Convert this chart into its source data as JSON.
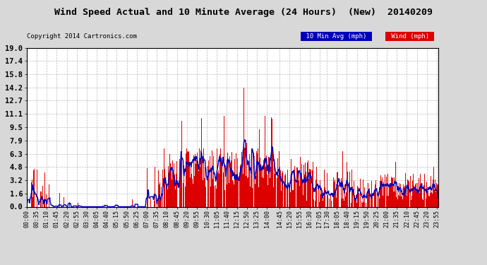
{
  "title": "Wind Speed Actual and 10 Minute Average (24 Hours)  (New)  20140209",
  "copyright": "Copyright 2014 Cartronics.com",
  "legend_labels": [
    "10 Min Avg (mph)",
    "Wind (mph)"
  ],
  "legend_colors": [
    "#0000bb",
    "#dd0000"
  ],
  "yticks": [
    0.0,
    1.6,
    3.2,
    4.8,
    6.3,
    7.9,
    9.5,
    11.1,
    12.7,
    14.2,
    15.8,
    17.4,
    19.0
  ],
  "ylim": [
    0.0,
    19.0
  ],
  "bg_color": "#d8d8d8",
  "plot_bg": "#ffffff",
  "bar_color": "#dd0000",
  "line_color": "#0000bb",
  "grid_color": "#aaaaaa",
  "xtick_labels": [
    "00:00",
    "00:35",
    "01:10",
    "01:45",
    "02:20",
    "02:55",
    "03:30",
    "04:05",
    "04:40",
    "05:15",
    "05:50",
    "06:25",
    "07:00",
    "07:35",
    "08:10",
    "08:45",
    "09:20",
    "09:55",
    "10:30",
    "11:05",
    "11:40",
    "12:15",
    "12:50",
    "13:25",
    "14:00",
    "14:45",
    "15:20",
    "15:55",
    "16:30",
    "17:05",
    "17:30",
    "18:05",
    "18:40",
    "19:15",
    "19:50",
    "20:25",
    "21:00",
    "21:35",
    "22:10",
    "22:45",
    "23:20",
    "23:55"
  ]
}
